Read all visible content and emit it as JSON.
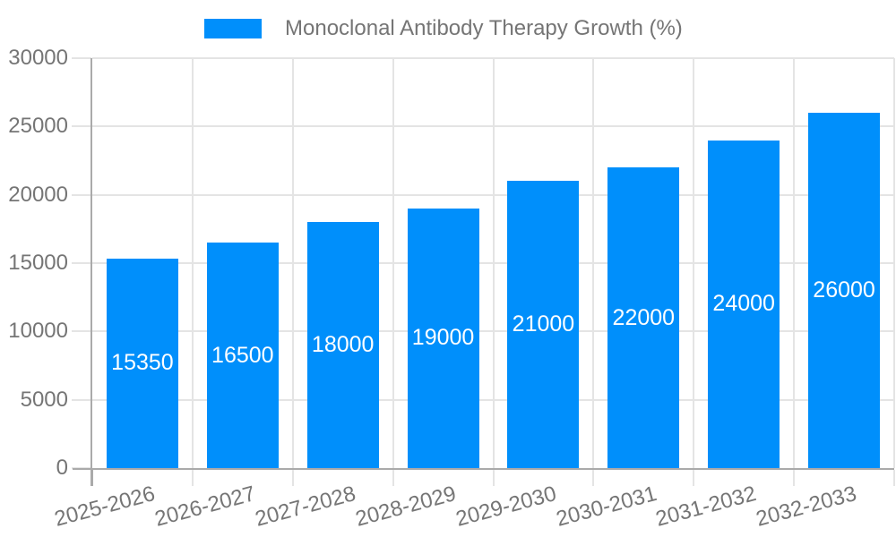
{
  "chart_data": {
    "type": "bar",
    "title": "Monoclonal Antibody Therapy Growth (%)",
    "categories": [
      "2025-2026",
      "2026-2027",
      "2027-2028",
      "2028-2029",
      "2029-2030",
      "2030-2031",
      "2031-2032",
      "2032-2033"
    ],
    "values": [
      15350,
      16500,
      18000,
      19000,
      21000,
      22000,
      24000,
      26000
    ],
    "series": [
      {
        "name": "Monoclonal Antibody Therapy Growth (%)",
        "values": [
          15350,
          16500,
          18000,
          19000,
          21000,
          22000,
          24000,
          26000
        ]
      }
    ],
    "xlabel": "",
    "ylabel": "",
    "ylim": [
      0,
      30000
    ],
    "yticks": [
      0,
      5000,
      10000,
      15000,
      20000,
      25000,
      30000
    ],
    "grid": "both",
    "legend_position": "top",
    "value_labels": "inside-center",
    "colors": {
      "bar": "#008ffb",
      "value_label": "#ffffff",
      "axis_text": "#757575",
      "axis_line": "#aaaaaa",
      "gridline": "#e4e4e4"
    }
  }
}
